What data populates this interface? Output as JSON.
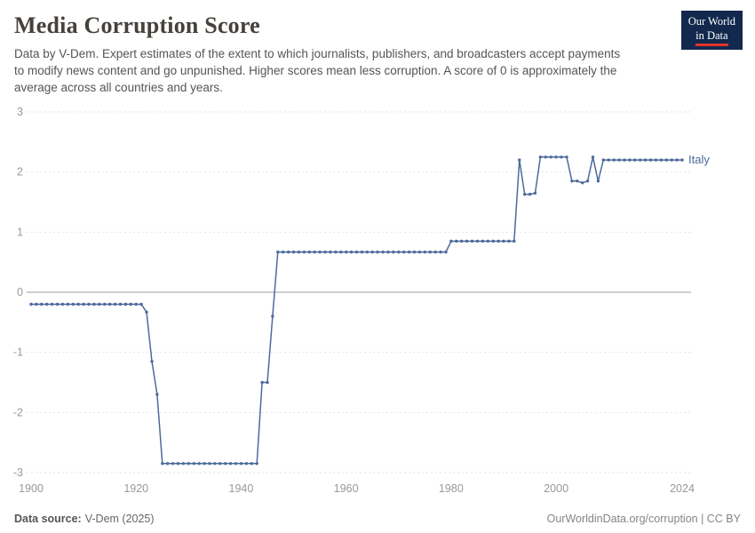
{
  "header": {
    "title": "Media Corruption Score",
    "subtitle": "Data by V-Dem. Expert estimates of the extent to which journalists, publishers, and broadcasters accept payments to modify news content and go unpunished. Higher scores mean less corruption. A score of 0 is approximately the average across all countries and years.",
    "logo": {
      "line1": "Our World",
      "line2": "in Data"
    }
  },
  "footer": {
    "source_label": "Data source:",
    "source_value": "V-Dem (2025)",
    "credit": "OurWorldinData.org/corruption | CC BY"
  },
  "chart_data": {
    "type": "line",
    "title": "Media Corruption Score",
    "entity_label": "Italy",
    "line_color": "#4c6a9c",
    "grid_color": "#e2e2e2",
    "zero_line_color": "#9e9e9e",
    "tick_color": "#999999",
    "xlim": [
      1900,
      2024
    ],
    "ylim": [
      -3,
      3
    ],
    "x_ticks": [
      1900,
      1920,
      1940,
      1960,
      1980,
      2000,
      2024
    ],
    "y_ticks": [
      3,
      2,
      1,
      0,
      -1,
      -2,
      -3
    ],
    "x_start": 1900,
    "values": [
      -0.2,
      -0.2,
      -0.2,
      -0.2,
      -0.2,
      -0.2,
      -0.2,
      -0.2,
      -0.2,
      -0.2,
      -0.2,
      -0.2,
      -0.2,
      -0.2,
      -0.2,
      -0.2,
      -0.2,
      -0.2,
      -0.2,
      -0.2,
      -0.2,
      -0.2,
      -0.33,
      -1.15,
      -1.7,
      -2.85,
      -2.85,
      -2.85,
      -2.85,
      -2.85,
      -2.85,
      -2.85,
      -2.85,
      -2.85,
      -2.85,
      -2.85,
      -2.85,
      -2.85,
      -2.85,
      -2.85,
      -2.85,
      -2.85,
      -2.85,
      -2.85,
      -1.5,
      -1.5,
      -0.4,
      0.67,
      0.67,
      0.67,
      0.67,
      0.67,
      0.67,
      0.67,
      0.67,
      0.67,
      0.67,
      0.67,
      0.67,
      0.67,
      0.67,
      0.67,
      0.67,
      0.67,
      0.67,
      0.67,
      0.67,
      0.67,
      0.67,
      0.67,
      0.67,
      0.67,
      0.67,
      0.67,
      0.67,
      0.67,
      0.67,
      0.67,
      0.67,
      0.67,
      0.85,
      0.85,
      0.85,
      0.85,
      0.85,
      0.85,
      0.85,
      0.85,
      0.85,
      0.85,
      0.85,
      0.85,
      0.85,
      2.2,
      1.63,
      1.63,
      1.65,
      2.25,
      2.25,
      2.25,
      2.25,
      2.25,
      2.25,
      1.85,
      1.85,
      1.82,
      1.85,
      2.25,
      1.85,
      2.2,
      2.2,
      2.2,
      2.2,
      2.2,
      2.2,
      2.2,
      2.2,
      2.2,
      2.2,
      2.2,
      2.2,
      2.2,
      2.2,
      2.2,
      2.2
    ]
  }
}
